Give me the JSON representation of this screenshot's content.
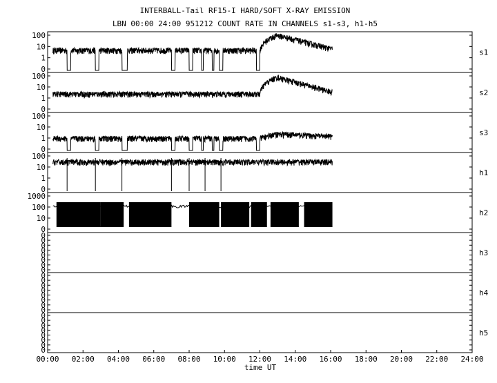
{
  "title_line1": "INTERBALL-Tail RF15-I HARD/SOFT X-RAY EMISSION",
  "title_line2": "LBN 00:00 24:00 951212  COUNT RATE IN CHANNELS s1-s3, h1-h5",
  "chart_data": {
    "type": "line",
    "title": "INTERBALL-Tail RF15-I HARD/SOFT X-RAY EMISSION",
    "subtitle": "LBN 00:00 24:00 951212  COUNT RATE IN CHANNELS s1-s3, h1-h5",
    "xlabel": "time UT",
    "xlim": [
      0,
      24
    ],
    "x_ticks": [
      "00:00",
      "02:00",
      "04:00",
      "06:00",
      "08:00",
      "10:00",
      "12:00",
      "14:00",
      "16:00",
      "18:00",
      "20:00",
      "22:00",
      "24:00"
    ],
    "panels": [
      {
        "name": "s1",
        "y_ticks": [
          "100",
          "10",
          "1",
          "0"
        ],
        "has_data": true
      },
      {
        "name": "s2",
        "y_ticks": [
          "100",
          "10",
          "1",
          "0"
        ],
        "has_data": true
      },
      {
        "name": "s3",
        "y_ticks": [
          "100",
          "10",
          "1",
          "0"
        ],
        "has_data": true
      },
      {
        "name": "h1",
        "y_ticks": [
          "100",
          "10",
          "1",
          "0"
        ],
        "has_data": true
      },
      {
        "name": "h2",
        "y_ticks": [
          "1000",
          "100",
          "10",
          "0"
        ],
        "has_data": true
      },
      {
        "name": "h3",
        "y_ticks": [
          "0",
          "0",
          "0",
          "0",
          "0",
          "0",
          "0",
          "0"
        ],
        "has_data": false
      },
      {
        "name": "h4",
        "y_ticks": [
          "0",
          "0",
          "0",
          "0",
          "0",
          "0",
          "0",
          "0"
        ],
        "has_data": false
      },
      {
        "name": "h5",
        "y_ticks": [
          "0",
          "0",
          "0",
          "0",
          "0",
          "0",
          "0",
          "0"
        ],
        "has_data": false
      }
    ],
    "series": [
      {
        "name": "s1",
        "baseline": 10,
        "data_end_hour": 16.1,
        "gaps": [
          [
            1.1,
            1.3
          ],
          [
            2.7,
            2.9
          ],
          [
            4.2,
            4.5
          ],
          [
            7.0,
            7.2
          ],
          [
            8.0,
            8.2
          ],
          [
            8.7,
            8.8
          ],
          [
            9.3,
            9.4
          ],
          [
            9.7,
            9.9
          ],
          [
            11.8,
            12.0
          ]
        ],
        "flare": {
          "start": 12.0,
          "peak_hour": 13.0,
          "peak": 100,
          "end_hour": 16.1,
          "end": 12
        }
      },
      {
        "name": "s2",
        "baseline": 6,
        "data_end_hour": 16.1,
        "gaps": [],
        "flare": {
          "start": 12.0,
          "peak_hour": 13.0,
          "peak": 80,
          "end_hour": 16.1,
          "end": 8
        }
      },
      {
        "name": "s3",
        "baseline": 3,
        "data_end_hour": 16.1,
        "gaps": [
          [
            1.1,
            1.3
          ],
          [
            2.7,
            2.9
          ],
          [
            4.2,
            4.5
          ],
          [
            7.0,
            7.2
          ],
          [
            8.0,
            8.2
          ],
          [
            8.7,
            8.8
          ],
          [
            9.3,
            9.4
          ],
          [
            9.7,
            9.9
          ],
          [
            11.8,
            12.0
          ]
        ],
        "flare": {
          "start": 12.0,
          "peak_hour": 13.0,
          "peak": 6,
          "end_hour": 16.1,
          "end": 4
        }
      },
      {
        "name": "h1",
        "baseline": 40,
        "data_end_hour": 16.1,
        "dropouts": [
          1.1,
          2.7,
          4.2,
          7.0,
          8.0,
          8.9,
          9.8
        ],
        "gaps": [],
        "flare": null
      },
      {
        "name": "h2",
        "baseline": 100,
        "data_end_hour": 16.1,
        "blocks": [
          [
            0.5,
            3.0
          ],
          [
            3.0,
            4.3
          ],
          [
            4.6,
            7.0
          ],
          [
            8.0,
            9.7
          ],
          [
            9.8,
            11.4
          ],
          [
            11.5,
            12.4
          ],
          [
            12.6,
            14.2
          ],
          [
            14.5,
            16.1
          ]
        ],
        "gaps": [],
        "flare": null
      }
    ]
  }
}
